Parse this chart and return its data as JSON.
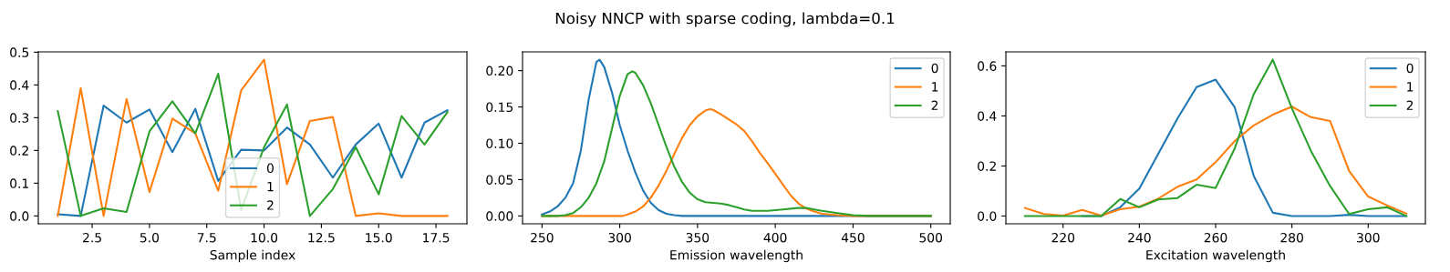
{
  "chart_data": [
    {
      "type": "line",
      "xlabel": "Sample index",
      "x": [
        1,
        2,
        3,
        4,
        5,
        6,
        7,
        8,
        9,
        10,
        11,
        12,
        13,
        14,
        15,
        16,
        17,
        18
      ],
      "xlim": [
        0.15,
        18.85
      ],
      "xticks": [
        2.5,
        {
          "value": 5,
          "label": "5.0"
        },
        7.5,
        {
          "value": 10,
          "label": "10.0"
        },
        12.5,
        {
          "value": 15,
          "label": "15.0"
        },
        17.5
      ],
      "ylim": [
        -0.024,
        0.501
      ],
      "yticks": [
        {
          "value": 0,
          "label": "0.0"
        },
        0.1,
        0.2,
        0.3,
        0.4,
        0.5
      ],
      "legend": "bottom",
      "grid": false,
      "series": [
        {
          "name": "0",
          "color": "#1f77b4",
          "values": [
            0.005,
            0.0,
            0.337,
            0.285,
            0.325,
            0.195,
            0.327,
            0.107,
            0.202,
            0.2,
            0.27,
            0.218,
            0.117,
            0.218,
            0.282,
            0.117,
            0.285,
            0.323
          ]
        },
        {
          "name": "1",
          "color": "#ff7f0e",
          "values": [
            0.0,
            0.39,
            0.0,
            0.357,
            0.073,
            0.297,
            0.252,
            0.077,
            0.383,
            0.477,
            0.097,
            0.29,
            0.302,
            0.0,
            0.008,
            0.0,
            0.0,
            0.0
          ]
        },
        {
          "name": "2",
          "color": "#2ca02c",
          "values": [
            0.32,
            0.0,
            0.023,
            0.012,
            0.258,
            0.35,
            0.252,
            0.434,
            0.018,
            0.21,
            0.34,
            0.0,
            0.082,
            0.21,
            0.066,
            0.305,
            0.218,
            0.317
          ]
        }
      ]
    },
    {
      "type": "line",
      "title": "Noisy NNCP with sparse coding, lambda=0.1",
      "xlabel": "Emission wavelength",
      "xlim": [
        237.5,
        512.5
      ],
      "xticks": [
        250,
        300,
        350,
        400,
        450,
        500
      ],
      "ylim": [
        -0.0108,
        0.2258
      ],
      "yticks": [
        {
          "value": 0,
          "label": "0.00"
        },
        {
          "value": 0.05,
          "label": "0.05"
        },
        {
          "value": 0.1,
          "label": "0.10"
        },
        {
          "value": 0.15,
          "label": "0.15"
        },
        {
          "value": 0.2,
          "label": "0.20"
        }
      ],
      "legend": "top right",
      "grid": false,
      "series": [
        {
          "name": "0",
          "color": "#1f77b4",
          "x": [
            250,
            255,
            260,
            265,
            270,
            275,
            280,
            285,
            287,
            290,
            295,
            300,
            305,
            310,
            315,
            320,
            325,
            330,
            335,
            340,
            350,
            400,
            450,
            500
          ],
          "values": [
            0.002,
            0.006,
            0.013,
            0.025,
            0.045,
            0.09,
            0.16,
            0.212,
            0.215,
            0.205,
            0.17,
            0.125,
            0.09,
            0.06,
            0.035,
            0.018,
            0.008,
            0.003,
            0.001,
            0,
            0,
            0,
            0,
            0
          ]
        },
        {
          "name": "1",
          "color": "#ff7f0e",
          "x": [
            250,
            300,
            302,
            305,
            310,
            315,
            320,
            325,
            330,
            335,
            340,
            345,
            350,
            355,
            358,
            360,
            365,
            370,
            375,
            380,
            385,
            390,
            395,
            400,
            405,
            410,
            415,
            420,
            425,
            430,
            440,
            450,
            500
          ],
          "values": [
            0,
            0,
            0.0,
            0.002,
            0.006,
            0.013,
            0.025,
            0.042,
            0.062,
            0.085,
            0.107,
            0.125,
            0.137,
            0.145,
            0.147,
            0.146,
            0.14,
            0.133,
            0.126,
            0.117,
            0.103,
            0.087,
            0.073,
            0.058,
            0.043,
            0.028,
            0.017,
            0.01,
            0.006,
            0.003,
            0.001,
            0,
            0
          ]
        },
        {
          "name": "2",
          "color": "#2ca02c",
          "x": [
            250,
            260,
            265,
            270,
            275,
            280,
            285,
            290,
            295,
            300,
            305,
            308,
            310,
            315,
            320,
            325,
            330,
            335,
            340,
            345,
            350,
            355,
            360,
            365,
            370,
            375,
            380,
            385,
            390,
            395,
            400,
            405,
            410,
            415,
            420,
            425,
            430,
            440,
            450,
            460,
            500
          ],
          "values": [
            0,
            0,
            0.001,
            0.004,
            0.012,
            0.025,
            0.045,
            0.075,
            0.12,
            0.165,
            0.195,
            0.199,
            0.197,
            0.18,
            0.155,
            0.125,
            0.095,
            0.068,
            0.047,
            0.032,
            0.023,
            0.019,
            0.018,
            0.017,
            0.015,
            0.012,
            0.009,
            0.007,
            0.007,
            0.007,
            0.008,
            0.009,
            0.01,
            0.011,
            0.011,
            0.009,
            0.007,
            0.004,
            0.001,
            0,
            0
          ]
        }
      ]
    },
    {
      "type": "line",
      "xlabel": "Excitation wavelength",
      "x": [
        210,
        215,
        220,
        225,
        230,
        235,
        240,
        245,
        250,
        255,
        260,
        265,
        270,
        275,
        280,
        285,
        290,
        295,
        300,
        305,
        310
      ],
      "xlim": [
        205,
        315
      ],
      "xticks": [
        220,
        240,
        260,
        280,
        300
      ],
      "ylim": [
        -0.031,
        0.656
      ],
      "yticks": [
        {
          "value": 0,
          "label": "0.0"
        },
        0.2,
        0.4,
        0.6
      ],
      "legend": "top right",
      "grid": false,
      "series": [
        {
          "name": "0",
          "color": "#1f77b4",
          "values": [
            null,
            null,
            null,
            0,
            0,
            0.035,
            0.11,
            0.25,
            0.39,
            0.515,
            0.545,
            0.435,
            0.16,
            0.013,
            0,
            0,
            0,
            0.005,
            0,
            0,
            0
          ]
        },
        {
          "name": "1",
          "color": "#ff7f0e",
          "values": [
            0.032,
            0.008,
            0.002,
            0.024,
            0.002,
            0.027,
            0.037,
            0.07,
            0.117,
            0.146,
            0.215,
            0.3,
            0.362,
            0.405,
            0.437,
            0.395,
            0.38,
            0.18,
            0.078,
            0.042,
            0.01
          ]
        },
        {
          "name": "2",
          "color": "#2ca02c",
          "values": [
            0,
            0,
            0,
            0,
            0,
            0.068,
            0.035,
            0.066,
            0.072,
            0.125,
            0.112,
            0.27,
            0.487,
            0.625,
            0.43,
            0.26,
            0.12,
            0.008,
            0.027,
            0.035,
            0.0
          ]
        }
      ]
    }
  ]
}
